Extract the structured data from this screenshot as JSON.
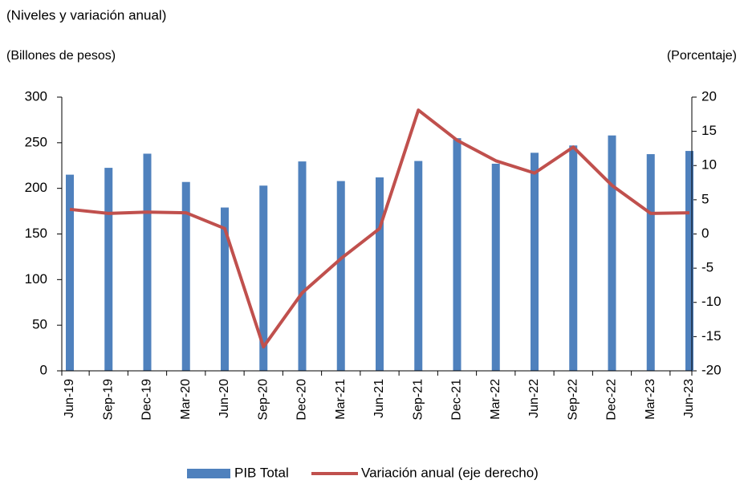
{
  "chart_data": {
    "type": "bar_line",
    "title": "(Niveles y variación anual)",
    "y_label": "(Billones de pesos)",
    "y2_label": "(Porcentaje)",
    "categories": [
      "Jun-19",
      "Sep-19",
      "Dec-19",
      "Mar-20",
      "Jun-20",
      "Sep-20",
      "Dec-20",
      "Mar-21",
      "Jun-21",
      "Sep-21",
      "Dec-21",
      "Mar-22",
      "Jun-22",
      "Sep-22",
      "Dec-22",
      "Mar-23",
      "Jun-23"
    ],
    "series": [
      {
        "name": "PIB Total",
        "type": "bar",
        "color": "#4f81bd",
        "values": [
          215,
          222.5,
          238,
          207,
          179,
          203,
          229.5,
          208,
          212,
          230,
          255,
          227,
          239,
          247,
          258,
          237.5,
          241
        ]
      },
      {
        "name": "Variación anual (eje derecho)",
        "type": "line",
        "axis": "y2",
        "color": "#c0504d",
        "values": [
          3.6,
          3.0,
          3.2,
          3.1,
          0.8,
          -16.5,
          -8.6,
          -3.6,
          0.8,
          18.1,
          13.7,
          10.7,
          8.9,
          12.7,
          7.1,
          3.0,
          3.1
        ]
      }
    ],
    "ylim": [
      0,
      300
    ],
    "yticks": [
      0,
      50,
      100,
      150,
      200,
      250,
      300
    ],
    "y2lim": [
      -20,
      20
    ],
    "y2ticks": [
      -20,
      -15,
      -10,
      -5,
      0,
      5,
      10,
      15,
      20
    ],
    "legend": "bottom"
  }
}
